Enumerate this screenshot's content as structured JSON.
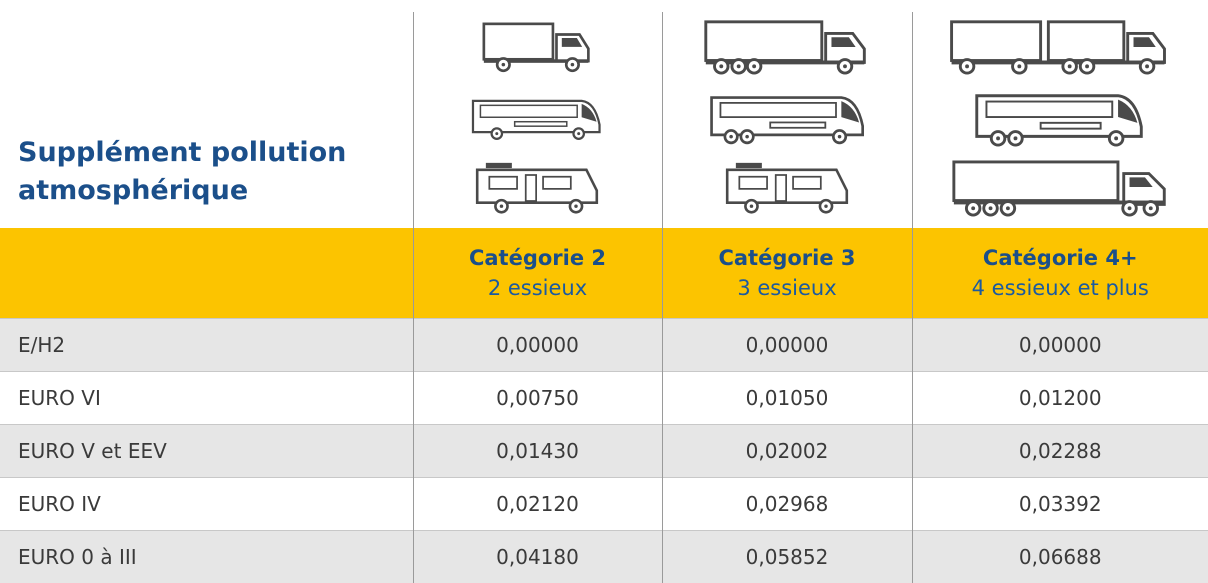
{
  "header": {
    "title": "Supplément pollution atmosphérique"
  },
  "table": {
    "columns": [
      {
        "title": "Catégorie 2",
        "subtitle": "2 essieux"
      },
      {
        "title": "Catégorie 3",
        "subtitle": "3 essieux"
      },
      {
        "title": "Catégorie 4+",
        "subtitle": "4 essieux et plus"
      }
    ],
    "rows": [
      [
        "E/H2",
        "0,00000",
        "0,00000",
        "0,00000"
      ],
      [
        "EURO VI",
        "0,00750",
        "0,01050",
        "0,01200"
      ],
      [
        "EURO V et EEV",
        "0,01430",
        "0,02002",
        "0,02288"
      ],
      [
        "EURO IV",
        "0,02120",
        "0,02968",
        "0,03392"
      ],
      [
        "EURO 0 à III",
        "0,04180",
        "0,05852",
        "0,06688"
      ]
    ]
  }
}
